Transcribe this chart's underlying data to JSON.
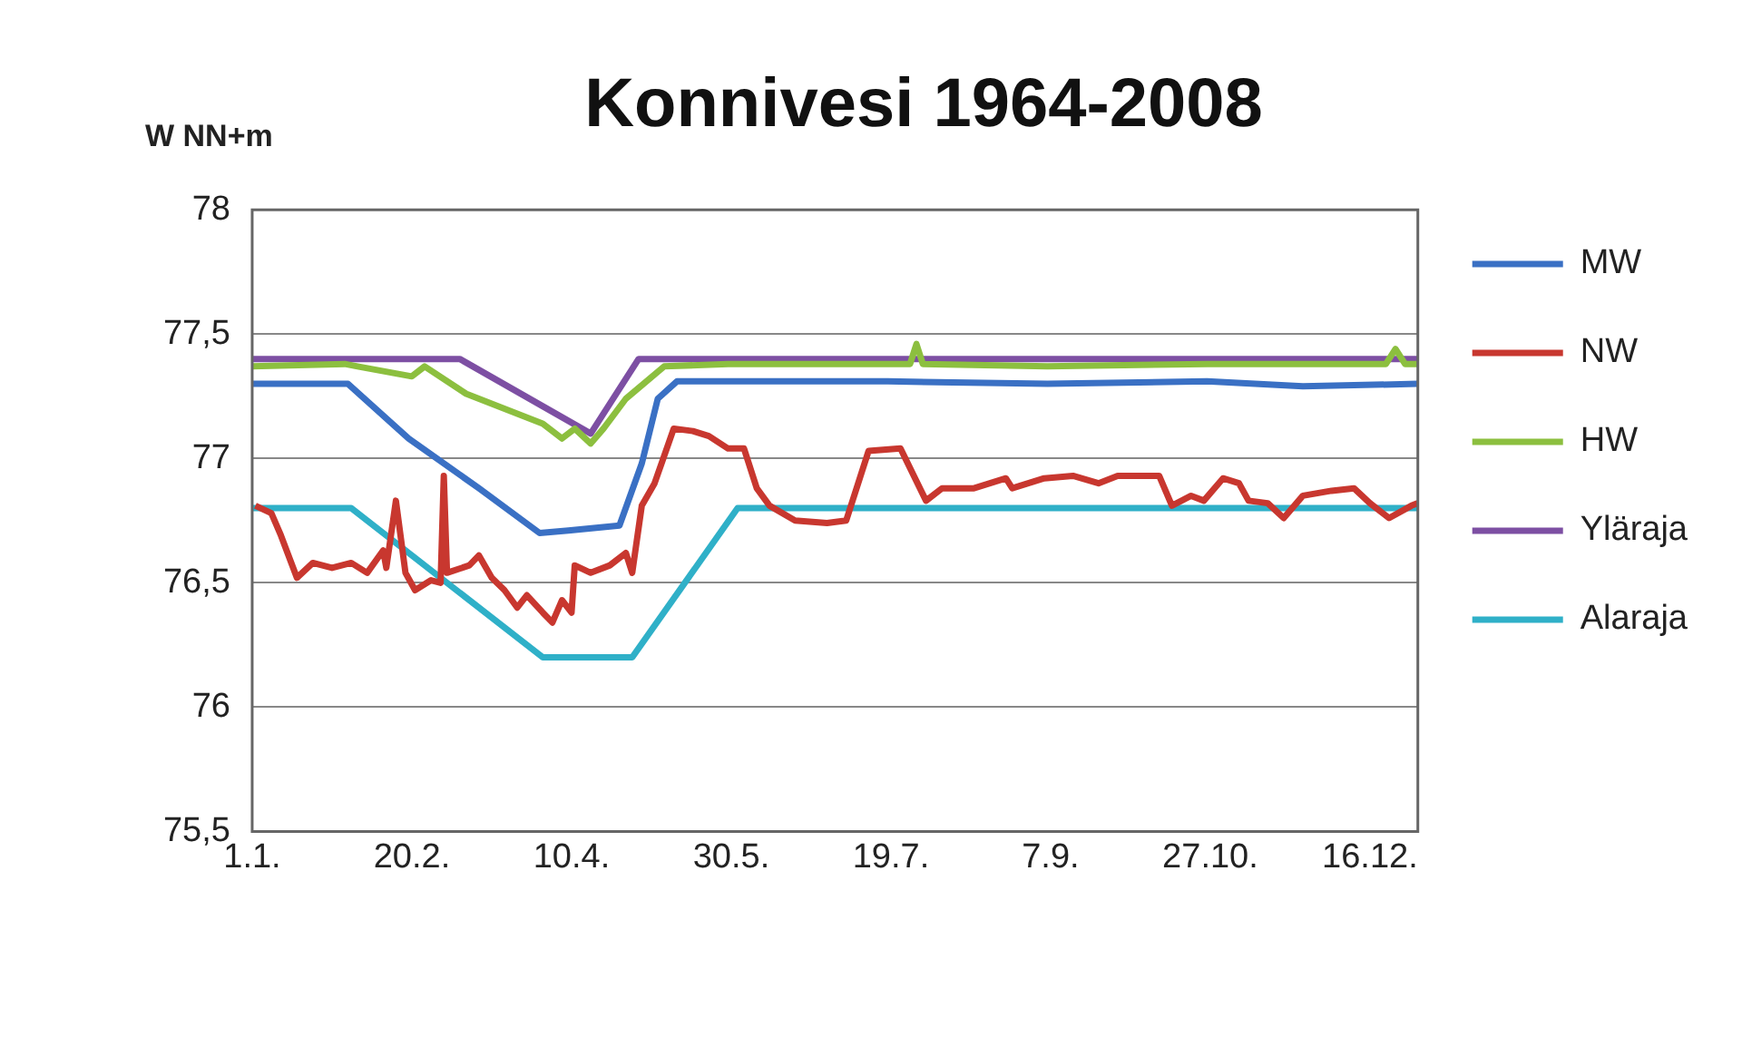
{
  "chart_data": {
    "type": "line",
    "title": "Konnivesi 1964-2008",
    "ylabel": "W NN+m",
    "xlim": [
      "--01-01",
      "--12-31"
    ],
    "xticks": [
      {
        "value": "--01-01",
        "label": "1.1."
      },
      {
        "value": "--02-20",
        "label": "20.2."
      },
      {
        "value": "--04-10",
        "label": "10.4."
      },
      {
        "value": "--05-30",
        "label": "30.5."
      },
      {
        "value": "--07-19",
        "label": "19.7."
      },
      {
        "value": "--09-07",
        "label": "7.9."
      },
      {
        "value": "--10-27",
        "label": "27.10."
      },
      {
        "value": "--12-16",
        "label": "16.12."
      }
    ],
    "ylim": [
      75.5,
      78
    ],
    "yticks": [
      {
        "value": 75.5,
        "label": "75,5"
      },
      76,
      {
        "value": 76.5,
        "label": "76,5"
      },
      77,
      {
        "value": 77.5,
        "label": "77,5"
      },
      78
    ],
    "grid": "y",
    "legend": "right",
    "marker": "none",
    "line_style": "solid",
    "series": [
      {
        "name": "MW",
        "color": "#3a70c4",
        "x": [
          "--01-01",
          "--01-31",
          "--02-19",
          "--03-12",
          "--03-31",
          "--04-09",
          "--04-25",
          "--05-02",
          "--05-07",
          "--05-13",
          "--05-29",
          "--07-18",
          "--09-06",
          "--10-26",
          "--11-25",
          "--12-31"
        ],
        "values": [
          77.3,
          77.3,
          77.08,
          76.88,
          76.7,
          76.71,
          76.73,
          76.98,
          77.24,
          77.31,
          77.31,
          77.31,
          77.3,
          77.31,
          77.29,
          77.3
        ]
      },
      {
        "name": "NW",
        "color": "#c8372f",
        "x": [
          "--01-02",
          "--01-07",
          "--01-10",
          "--01-15",
          "--01-20",
          "--01-26",
          "--02-01",
          "--02-06",
          "--02-11",
          "--02-12",
          "--02-15",
          "--02-18",
          "--02-21",
          "--02-26",
          "--02-29",
          "--03-01",
          "--03-02",
          "--03-09",
          "--03-12",
          "--03-16",
          "--03-20",
          "--03-24",
          "--03-27",
          "--04-01",
          "--04-04",
          "--04-07",
          "--04-10",
          "--04-11",
          "--04-16",
          "--04-22",
          "--04-27",
          "--04-29",
          "--05-02",
          "--05-06",
          "--05-12",
          "--05-18",
          "--05-23",
          "--05-29",
          "--06-03",
          "--06-07",
          "--06-11",
          "--06-19",
          "--06-29",
          "--07-05",
          "--07-12",
          "--07-22",
          "--07-30",
          "--08-04",
          "--08-14",
          "--08-24",
          "--08-26",
          "--09-05",
          "--09-14",
          "--09-22",
          "--09-28",
          "--10-11",
          "--10-15",
          "--10-21",
          "--10-25",
          "--10-31",
          "--11-05",
          "--11-08",
          "--11-14",
          "--11-19",
          "--11-25",
          "--12-04",
          "--12-11",
          "--12-16",
          "--12-22",
          "--12-29",
          "--12-31"
        ],
        "values": [
          76.81,
          76.78,
          76.69,
          76.52,
          76.58,
          76.56,
          76.58,
          76.54,
          76.63,
          76.56,
          76.83,
          76.54,
          76.47,
          76.51,
          76.5,
          76.93,
          76.54,
          76.57,
          76.61,
          76.52,
          76.47,
          76.4,
          76.45,
          76.38,
          76.34,
          76.43,
          76.38,
          76.57,
          76.54,
          76.57,
          76.62,
          76.54,
          76.81,
          76.9,
          77.12,
          77.11,
          77.09,
          77.04,
          77.04,
          76.88,
          76.81,
          76.75,
          76.74,
          76.75,
          77.03,
          77.04,
          76.83,
          76.88,
          76.88,
          76.92,
          76.88,
          76.92,
          76.93,
          76.9,
          76.93,
          76.93,
          76.81,
          76.85,
          76.83,
          76.92,
          76.9,
          76.83,
          76.82,
          76.76,
          76.85,
          76.87,
          76.88,
          76.82,
          76.76,
          76.81,
          76.82
        ]
      },
      {
        "name": "HW",
        "color": "#8cbf3f",
        "x": [
          "--01-01",
          "--01-30",
          "--02-03",
          "--02-20",
          "--02-24",
          "--03-08",
          "--03-22",
          "--04-01",
          "--04-07",
          "--04-11",
          "--04-16",
          "--04-20",
          "--04-27",
          "--05-09",
          "--05-29",
          "--07-25",
          "--07-27",
          "--07-29",
          "--09-06",
          "--10-26",
          "--12-21",
          "--12-24",
          "--12-27",
          "--12-31"
        ],
        "values": [
          77.37,
          77.38,
          77.37,
          77.33,
          77.37,
          77.26,
          77.19,
          77.14,
          77.08,
          77.12,
          77.06,
          77.12,
          77.24,
          77.37,
          77.38,
          77.38,
          77.46,
          77.38,
          77.37,
          77.38,
          77.38,
          77.44,
          77.38,
          77.38
        ]
      },
      {
        "name": "Yläraja",
        "color": "#7d4fa3",
        "x": [
          "--01-01",
          "--03-06",
          "--04-16",
          "--05-01",
          "--12-31"
        ],
        "values": [
          77.4,
          77.4,
          77.1,
          77.4,
          77.4
        ]
      },
      {
        "name": "Alaraja",
        "color": "#2fb0c8",
        "x": [
          "--01-01",
          "--02-01",
          "--04-01",
          "--04-29",
          "--06-01",
          "--12-31"
        ],
        "values": [
          76.8,
          76.8,
          76.2,
          76.2,
          76.8,
          76.8
        ]
      }
    ]
  }
}
